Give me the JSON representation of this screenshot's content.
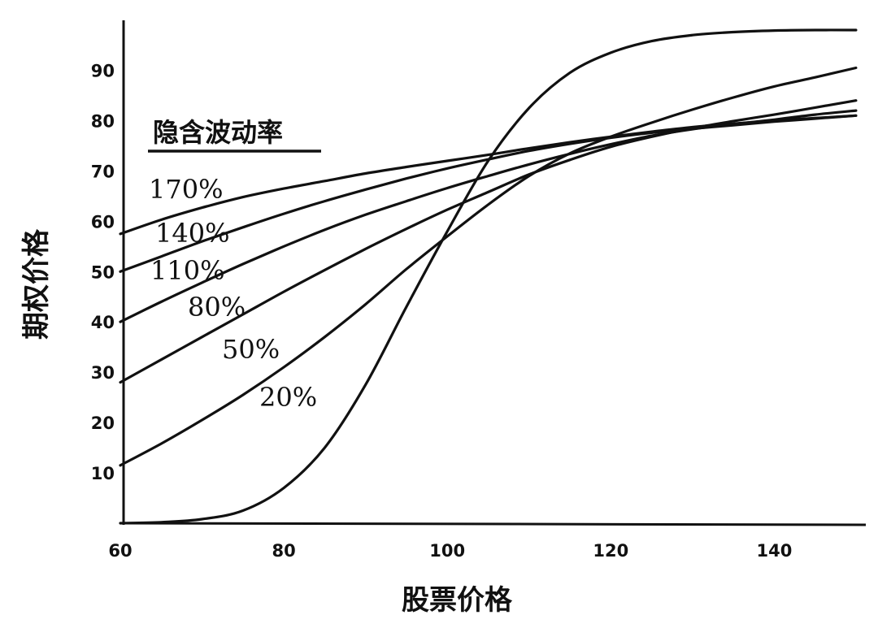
{
  "chart_data": {
    "type": "line",
    "xlabel": "股票价格",
    "ylabel": "期权价格",
    "legend_title": "隐含波动率",
    "xlim": [
      60,
      151
    ],
    "ylim": [
      0,
      98
    ],
    "x_ticks": [
      "60",
      "80",
      "100",
      "120",
      "140"
    ],
    "x_tick_values": [
      60,
      80,
      100,
      120,
      140
    ],
    "y_ticks": [
      "10",
      "20",
      "30",
      "40",
      "50",
      "60",
      "70",
      "80",
      "90"
    ],
    "y_tick_values": [
      10,
      20,
      30,
      40,
      50,
      60,
      70,
      80,
      90
    ],
    "x": [
      60,
      65,
      70,
      75,
      80,
      85,
      90,
      95,
      100,
      105,
      110,
      115,
      120,
      125,
      130,
      135,
      140,
      145,
      150
    ],
    "series": [
      {
        "name": "170%",
        "values": [
          57.5,
          60.3,
          62.7,
          64.8,
          66.5,
          68.0,
          69.5,
          70.8,
          72.0,
          73.2,
          74.5,
          75.7,
          76.8,
          77.8,
          78.7,
          79.4,
          80.0,
          80.5,
          81.0
        ]
      },
      {
        "name": "140%",
        "values": [
          50.0,
          53.0,
          56.0,
          58.8,
          61.5,
          64.0,
          66.3,
          68.5,
          70.5,
          72.3,
          74.0,
          75.4,
          76.6,
          77.6,
          78.4,
          79.1,
          79.8,
          80.4,
          81.0
        ]
      },
      {
        "name": "110%",
        "values": [
          40.0,
          44.0,
          47.8,
          51.5,
          55.0,
          58.3,
          61.3,
          64.0,
          66.6,
          69.0,
          71.3,
          73.4,
          75.3,
          77.0,
          78.3,
          79.3,
          80.2,
          81.2,
          82.0
        ]
      },
      {
        "name": "80%",
        "values": [
          28.0,
          32.5,
          37.0,
          41.5,
          46.0,
          50.3,
          54.5,
          58.5,
          62.3,
          65.8,
          69.3,
          72.2,
          74.8,
          76.8,
          78.5,
          79.9,
          81.2,
          82.6,
          84.0
        ]
      },
      {
        "name": "50%",
        "values": [
          11.5,
          15.8,
          20.5,
          25.5,
          31.0,
          37.0,
          43.5,
          50.5,
          57.0,
          63.3,
          69.0,
          73.5,
          76.8,
          79.6,
          82.2,
          84.6,
          86.8,
          88.6,
          90.5
        ]
      },
      {
        "name": "20%",
        "values": [
          0.0,
          0.2,
          0.8,
          2.5,
          7.0,
          15.0,
          27.5,
          43.0,
          58.0,
          72.0,
          82.5,
          89.5,
          93.5,
          95.8,
          97.0,
          97.6,
          97.9,
          98.0,
          98.0
        ]
      }
    ],
    "grid": false
  }
}
